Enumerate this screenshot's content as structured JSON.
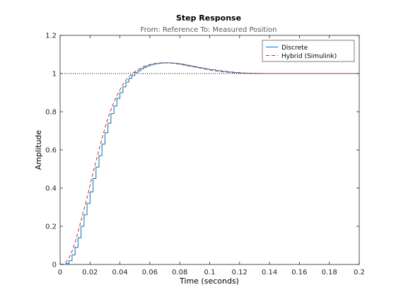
{
  "chart_data": {
    "type": "line",
    "title": "Step Response",
    "subtitle": "From: Reference  To: Measured Position",
    "xlabel": "Time (seconds)",
    "ylabel": "Amplitude",
    "xlim": [
      0,
      0.2
    ],
    "ylim": [
      0,
      1.2
    ],
    "xticks": [
      "0",
      "0.02",
      "0.04",
      "0.06",
      "0.08",
      "0.1",
      "0.12",
      "0.14",
      "0.16",
      "0.18",
      "0.2"
    ],
    "yticks": [
      "0",
      "0.2",
      "0.4",
      "0.6",
      "0.8",
      "1",
      "1.2"
    ],
    "legend_position": "top-right",
    "grid": false,
    "reference_line": {
      "y": 1,
      "style": "dotted",
      "color": "#000000"
    },
    "series": [
      {
        "name": "Discrete",
        "style": "stairs",
        "color": "#0072bd",
        "x": [
          0,
          0.002,
          0.004,
          0.006,
          0.008,
          0.01,
          0.012,
          0.014,
          0.016,
          0.018,
          0.02,
          0.022,
          0.024,
          0.026,
          0.028,
          0.03,
          0.032,
          0.034,
          0.036,
          0.038,
          0.04,
          0.042,
          0.044,
          0.046,
          0.048,
          0.05,
          0.052,
          0.054,
          0.056,
          0.058,
          0.06,
          0.062,
          0.064,
          0.066,
          0.068,
          0.07,
          0.072,
          0.074,
          0.076,
          0.078,
          0.08,
          0.082,
          0.084,
          0.086,
          0.088,
          0.09,
          0.092,
          0.094,
          0.096,
          0.098,
          0.1,
          0.104,
          0.108,
          0.112,
          0.116,
          0.12,
          0.124,
          0.128,
          0.132,
          0.136,
          0.2
        ],
        "y": [
          0,
          0.0,
          0.005,
          0.02,
          0.05,
          0.09,
          0.14,
          0.2,
          0.26,
          0.32,
          0.38,
          0.45,
          0.51,
          0.57,
          0.63,
          0.69,
          0.74,
          0.79,
          0.83,
          0.87,
          0.9,
          0.93,
          0.955,
          0.975,
          0.99,
          1.005,
          1.015,
          1.025,
          1.033,
          1.04,
          1.045,
          1.049,
          1.052,
          1.054,
          1.055,
          1.056,
          1.056,
          1.055,
          1.054,
          1.052,
          1.05,
          1.047,
          1.044,
          1.041,
          1.038,
          1.035,
          1.032,
          1.029,
          1.026,
          1.023,
          1.02,
          1.015,
          1.011,
          1.008,
          1.005,
          1.003,
          1.002,
          1.001,
          1.0005,
          1.0,
          1.0
        ]
      },
      {
        "name": "Hybrid (Simulink)",
        "style": "dashed",
        "color": "#d62728",
        "x": [
          0,
          0.002,
          0.004,
          0.006,
          0.008,
          0.01,
          0.012,
          0.014,
          0.016,
          0.018,
          0.02,
          0.022,
          0.024,
          0.026,
          0.028,
          0.03,
          0.032,
          0.034,
          0.036,
          0.038,
          0.04,
          0.042,
          0.044,
          0.046,
          0.048,
          0.05,
          0.052,
          0.054,
          0.056,
          0.058,
          0.06,
          0.062,
          0.064,
          0.066,
          0.068,
          0.07,
          0.072,
          0.074,
          0.076,
          0.078,
          0.08,
          0.082,
          0.084,
          0.086,
          0.088,
          0.09,
          0.092,
          0.094,
          0.096,
          0.098,
          0.1,
          0.104,
          0.108,
          0.112,
          0.116,
          0.12,
          0.124,
          0.128,
          0.132,
          0.136,
          0.2
        ],
        "y": [
          0,
          0.002,
          0.012,
          0.035,
          0.07,
          0.115,
          0.17,
          0.23,
          0.29,
          0.35,
          0.415,
          0.48,
          0.54,
          0.6,
          0.66,
          0.715,
          0.765,
          0.81,
          0.85,
          0.885,
          0.915,
          0.942,
          0.965,
          0.983,
          0.998,
          1.01,
          1.02,
          1.029,
          1.037,
          1.043,
          1.047,
          1.051,
          1.053,
          1.055,
          1.056,
          1.056,
          1.056,
          1.055,
          1.053,
          1.051,
          1.049,
          1.046,
          1.043,
          1.04,
          1.037,
          1.034,
          1.031,
          1.028,
          1.025,
          1.022,
          1.019,
          1.014,
          1.01,
          1.007,
          1.004,
          1.003,
          1.002,
          1.001,
          1.0005,
          1.0,
          1.0
        ]
      }
    ]
  }
}
